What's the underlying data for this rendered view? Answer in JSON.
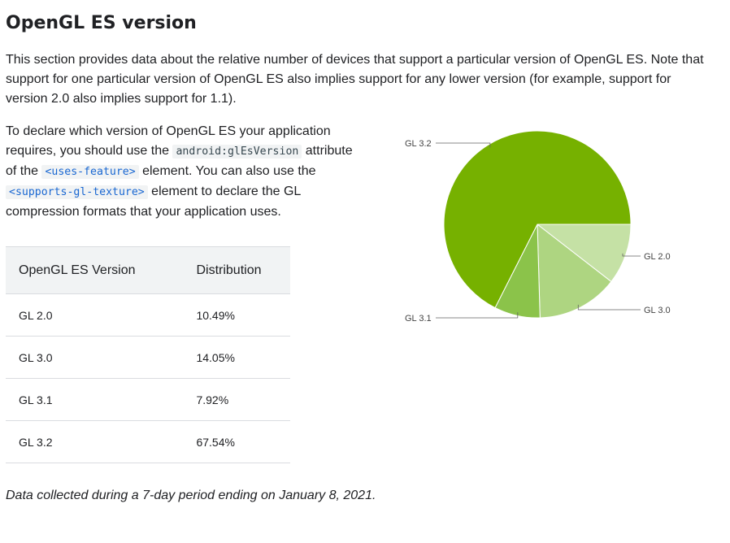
{
  "heading": "OpenGL ES version",
  "intro": "This section provides data about the relative number of devices that support a particular version of OpenGL ES. Note that support for one particular version of OpenGL ES also implies support for any lower version (for example, support for version 2.0 also implies support for 1.1).",
  "declare": {
    "part1": "To declare which version of OpenGL ES your application requires, you should use the ",
    "code1": "android:glEsVersion",
    "part2": " attribute of the ",
    "code2": "<uses-feature>",
    "part3": " element. You can also use the ",
    "code3": "<supports-gl-texture>",
    "part4": " element to declare the GL compression formats that your application uses."
  },
  "table": {
    "headers": [
      "OpenGL ES Version",
      "Distribution"
    ],
    "rows": [
      [
        "GL 2.0",
        "10.49%"
      ],
      [
        "GL 3.0",
        "14.05%"
      ],
      [
        "GL 3.1",
        "7.92%"
      ],
      [
        "GL 3.2",
        "67.54%"
      ]
    ]
  },
  "footnote": "Data collected during a 7-day period ending on January 8, 2021.",
  "chart_data": {
    "type": "pie",
    "categories": [
      "GL 2.0",
      "GL 3.0",
      "GL 3.1",
      "GL 3.2"
    ],
    "values": [
      10.49,
      14.05,
      7.92,
      67.54
    ],
    "colors": [
      "#c5e1a5",
      "#aed581",
      "#8bc34a",
      "#76b100"
    ],
    "legend": "none"
  }
}
